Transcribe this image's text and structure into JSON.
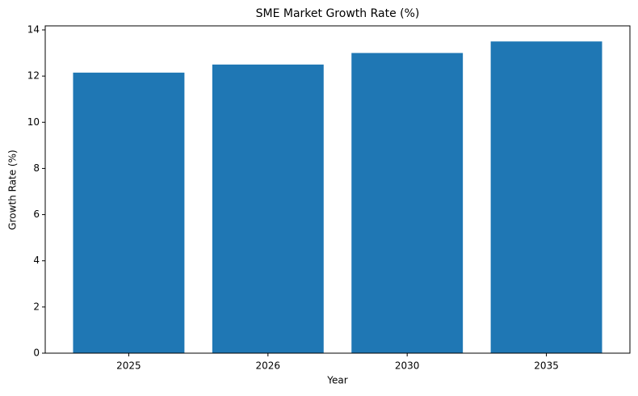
{
  "chart_data": {
    "type": "bar",
    "title": "SME Market Growth Rate (%)",
    "x_label": "Year",
    "y_label": "Growth Rate (%)",
    "categories": [
      "2025",
      "2026",
      "2030",
      "2035"
    ],
    "values": [
      12.15,
      12.5,
      13.0,
      13.5
    ],
    "color": "#1f77b4",
    "ylim": [
      0,
      14.175
    ],
    "yticks": [
      0,
      2,
      4,
      6,
      8,
      10,
      12,
      14
    ],
    "grid": false
  }
}
